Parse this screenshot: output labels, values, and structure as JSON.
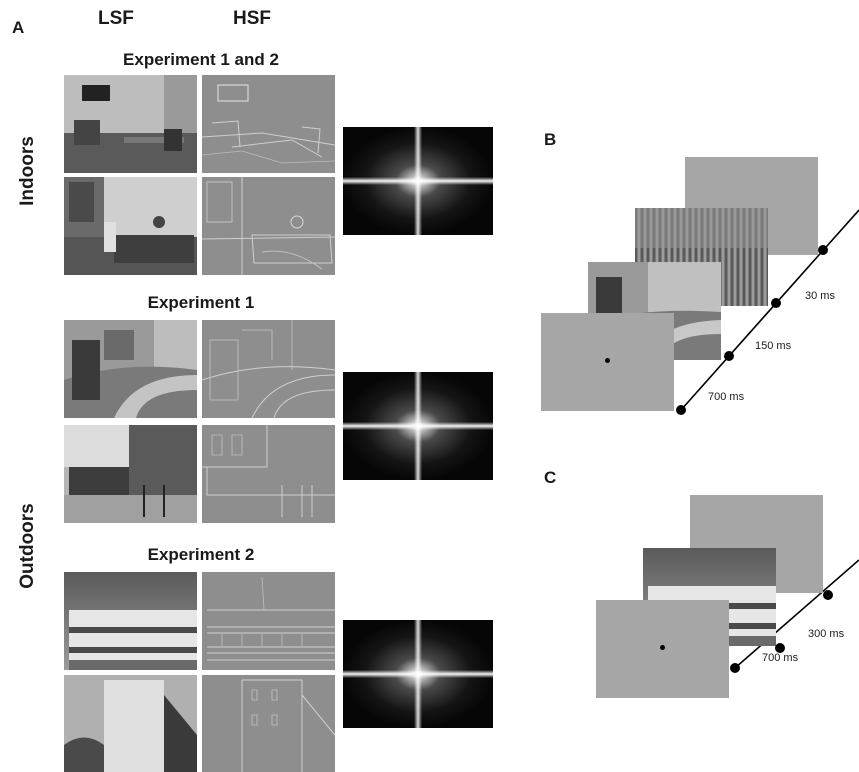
{
  "panels": {
    "a": "A",
    "b": "B",
    "c": "C"
  },
  "columns": {
    "lsf": "LSF",
    "hsf": "HSF"
  },
  "sections": {
    "exp12": "Experiment 1 and 2",
    "exp1": "Experiment 1",
    "exp2": "Experiment 2"
  },
  "rows": {
    "indoors": "Indoors",
    "outdoors": "Outdoors"
  },
  "timeline_b": {
    "t1": "700 ms",
    "t2": "150 ms",
    "t3": "30 ms"
  },
  "timeline_c": {
    "t1": "700 ms",
    "t2": "300 ms"
  },
  "colors": {
    "gray_screen": "#a6a6a6",
    "hsf_gray": "#8e8e8e",
    "timeline": "#000000"
  }
}
